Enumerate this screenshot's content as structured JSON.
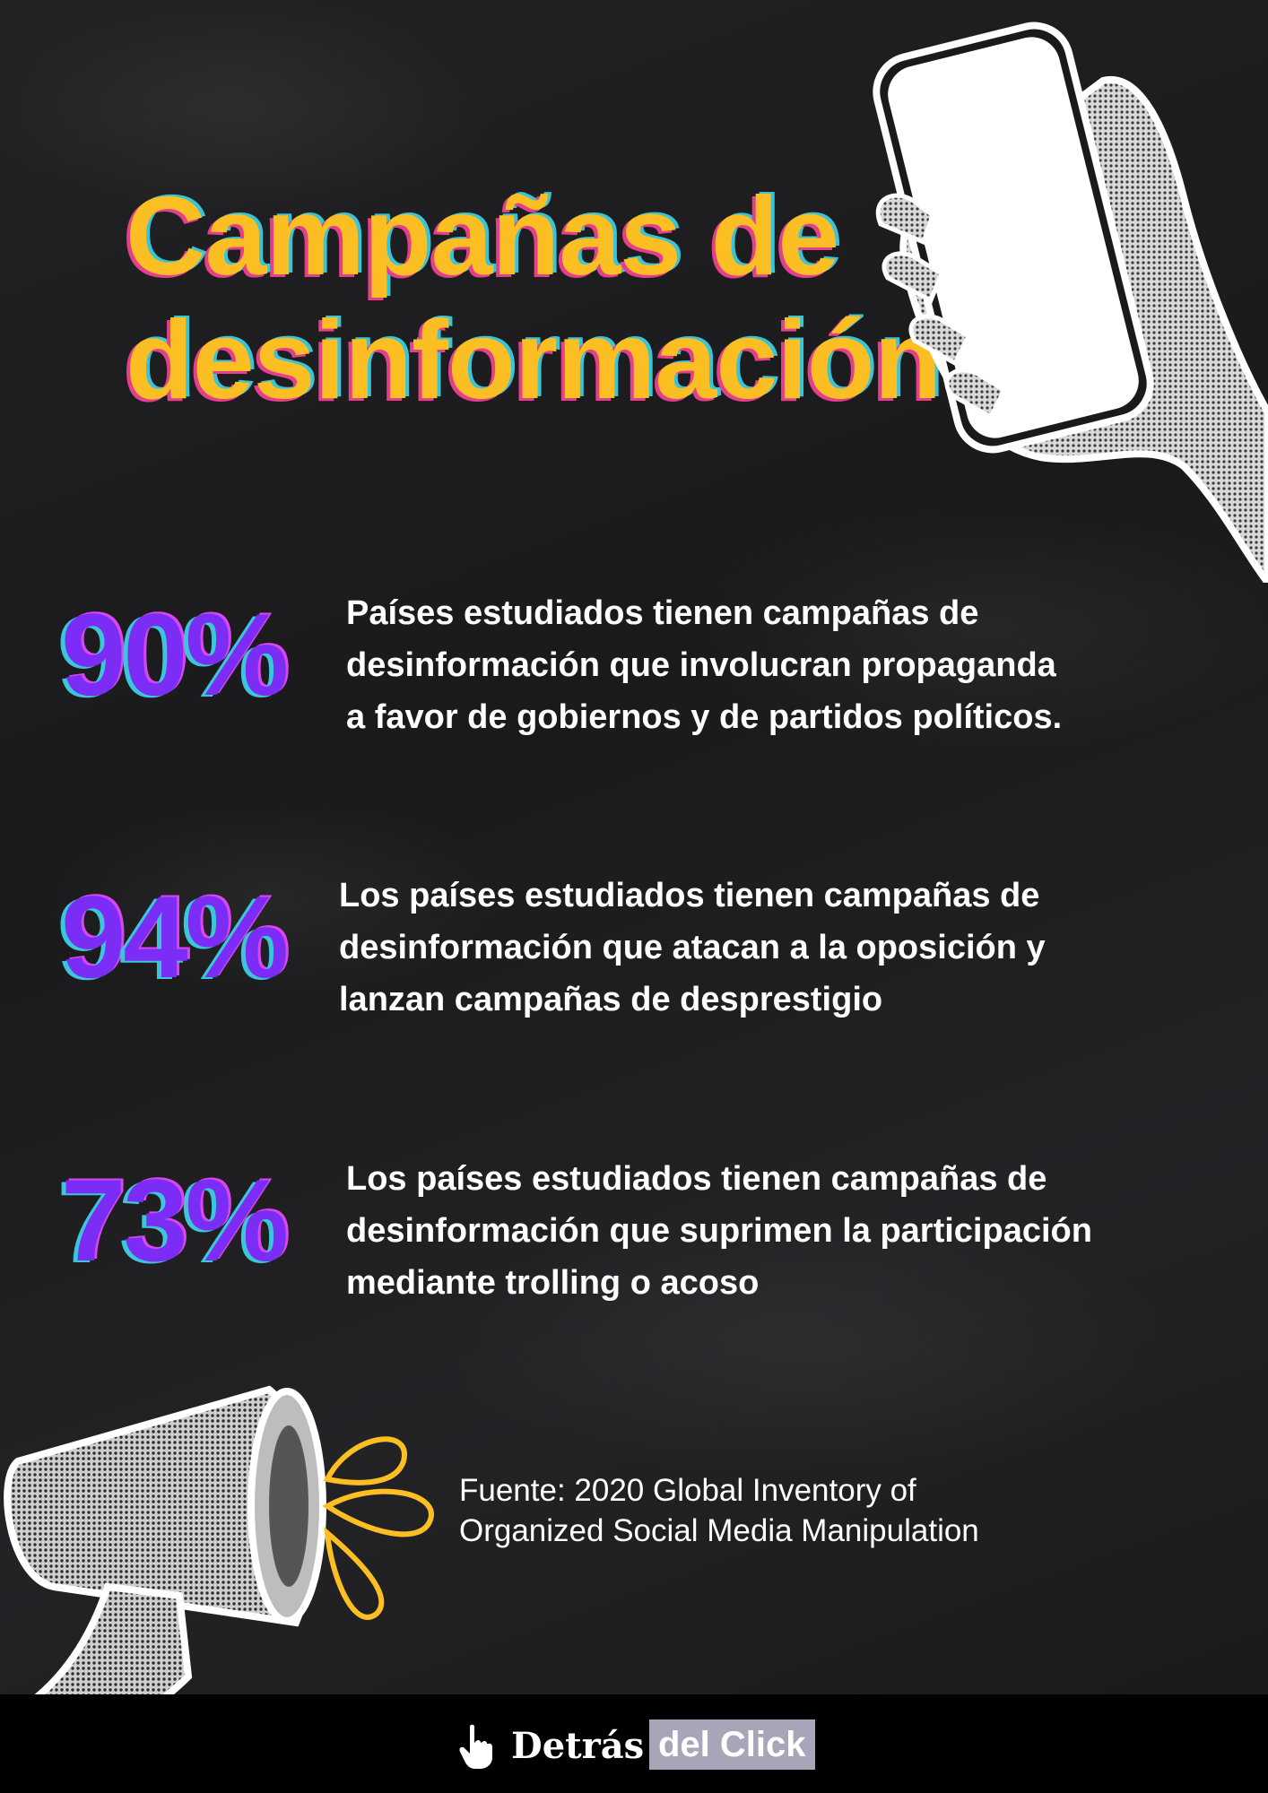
{
  "title": {
    "line1": "Campañas de",
    "line2": "desinformación"
  },
  "stats": [
    {
      "value": "90%",
      "lines": [
        "Países estudiados tienen campañas de",
        "desinformación que involucran propaganda",
        "a favor de gobiernos y de partidos políticos."
      ]
    },
    {
      "value": "94%",
      "lines": [
        "Los países estudiados tienen campañas de",
        "desinformación que atacan a la oposición y",
        "lanzan campañas de desprestigio"
      ]
    },
    {
      "value": "73%",
      "lines": [
        "Los países estudiados tienen campañas de",
        "desinformación que suprimen la participación",
        "mediante trolling o acoso"
      ]
    }
  ],
  "source": {
    "line1": "Fuente: 2020 Global Inventory of",
    "line2": "Organized Social Media Manipulation"
  },
  "footer": {
    "brand_word1": "Detrás",
    "brand_word2": "del Click",
    "icon": "pointing-hand-icon"
  },
  "colors": {
    "background": "#1d1d1f",
    "title": "#fbbf24",
    "percent": "#7b2cf5",
    "accent_cyan": "#3bc6d9",
    "accent_pink": "#e53f8c",
    "brand_box": "#a9a4b8"
  }
}
